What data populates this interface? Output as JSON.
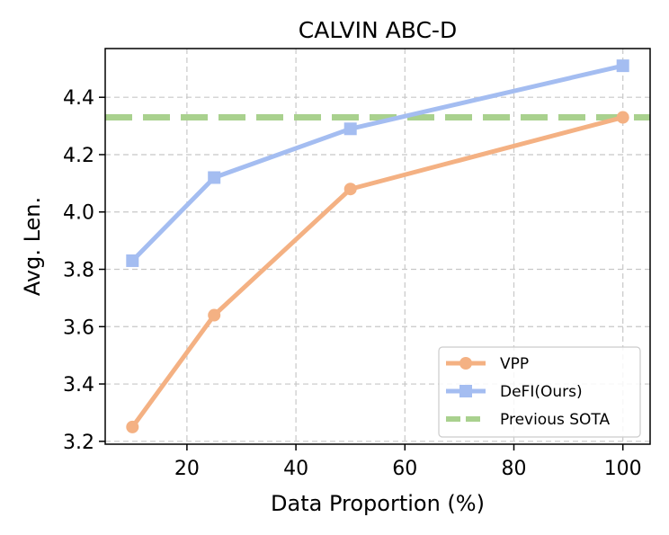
{
  "chart_data": {
    "type": "line",
    "title": "CALVIN ABC-D",
    "xlabel": "Data Proportion (%)",
    "ylabel": "Avg. Len.",
    "xlim": [
      5,
      105
    ],
    "ylim": [
      3.19,
      4.57
    ],
    "xticks": [
      20,
      40,
      60,
      80,
      100
    ],
    "yticks": [
      3.2,
      3.4,
      3.6,
      3.8,
      4.0,
      4.2,
      4.4
    ],
    "grid": true,
    "legend_position": "lower-right",
    "series": [
      {
        "name": "VPP",
        "color": "#f4b183",
        "marker": "circle",
        "x": [
          10,
          25,
          50,
          100
        ],
        "y": [
          3.25,
          3.64,
          4.08,
          4.33
        ]
      },
      {
        "name": "DeFI(Ours)",
        "color": "#a4bdf1",
        "marker": "square",
        "x": [
          10,
          25,
          50,
          100
        ],
        "y": [
          3.83,
          4.12,
          4.29,
          4.51
        ]
      }
    ],
    "reference_lines": [
      {
        "name": "Previous SOTA",
        "color": "#a9d18e",
        "style": "dashed",
        "y": 4.33
      }
    ]
  }
}
